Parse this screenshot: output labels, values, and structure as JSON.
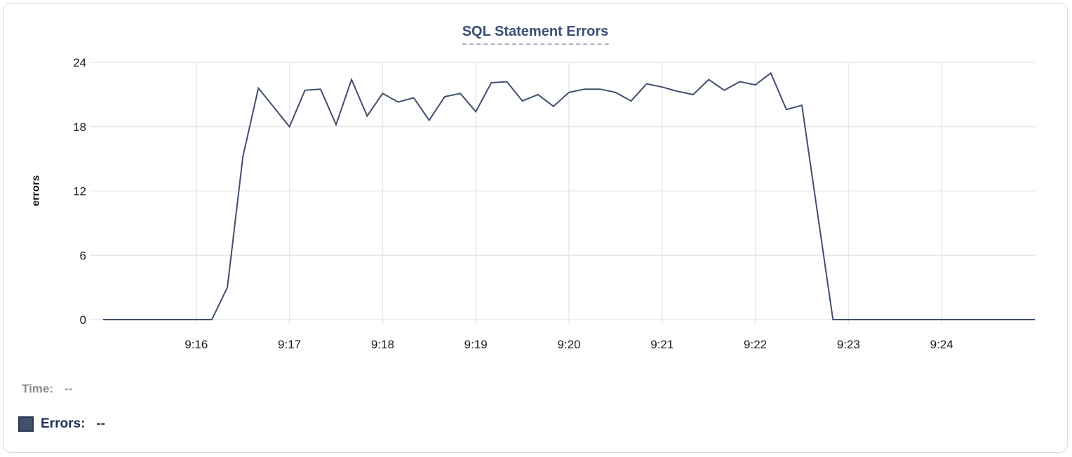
{
  "header": {
    "title": "SQL Statement Errors"
  },
  "colors": {
    "line": "#404f6e",
    "grid": "#e8e8e8",
    "card_border": "#d9d9de",
    "title_text": "#3c4e74",
    "title_underline": "#a8b1c4",
    "tick_text": "#1b1b1f",
    "time_text_gray": "#8b8b90",
    "errors_text_navy": "#1e2d55",
    "swatch_fill": "#41506b"
  },
  "footer": {
    "time_label": "Time:",
    "time_value": "--",
    "errors_label": "Errors:",
    "errors_value": "--"
  },
  "chart_data": {
    "type": "line",
    "title": "SQL Statement Errors",
    "xlabel": "",
    "ylabel": "errors",
    "ylim": [
      0,
      24
    ],
    "x_range": [
      "9:15:00",
      "9:25:00"
    ],
    "y_ticks": [
      24,
      18,
      12,
      6,
      0
    ],
    "x_ticks": [
      "9:16",
      "9:17",
      "9:18",
      "9:19",
      "9:20",
      "9:21",
      "9:22",
      "9:23",
      "9:24"
    ],
    "grid": true,
    "legend_position": "bottom-left",
    "series": [
      {
        "name": "Errors",
        "color": "#404f6e",
        "points": [
          [
            "9:15:00",
            0
          ],
          [
            "9:15:10",
            0
          ],
          [
            "9:15:20",
            0
          ],
          [
            "9:15:30",
            0
          ],
          [
            "9:15:40",
            0
          ],
          [
            "9:15:50",
            0
          ],
          [
            "9:16:00",
            0
          ],
          [
            "9:16:10",
            0
          ],
          [
            "9:16:20",
            3
          ],
          [
            "9:16:30",
            15.2
          ],
          [
            "9:16:40",
            21.6
          ],
          [
            "9:16:50",
            19.8
          ],
          [
            "9:17:00",
            18
          ],
          [
            "9:17:10",
            21.4
          ],
          [
            "9:17:20",
            21.5
          ],
          [
            "9:17:30",
            18.2
          ],
          [
            "9:17:40",
            22.4
          ],
          [
            "9:17:50",
            19
          ],
          [
            "9:18:00",
            21.1
          ],
          [
            "9:18:10",
            20.3
          ],
          [
            "9:18:20",
            20.7
          ],
          [
            "9:18:30",
            18.6
          ],
          [
            "9:18:40",
            20.8
          ],
          [
            "9:18:50",
            21.1
          ],
          [
            "9:19:00",
            19.4
          ],
          [
            "9:19:10",
            22.1
          ],
          [
            "9:19:20",
            22.2
          ],
          [
            "9:19:30",
            20.4
          ],
          [
            "9:19:40",
            21
          ],
          [
            "9:19:50",
            19.9
          ],
          [
            "9:20:00",
            21.2
          ],
          [
            "9:20:10",
            21.5
          ],
          [
            "9:20:20",
            21.5
          ],
          [
            "9:20:30",
            21.2
          ],
          [
            "9:20:40",
            20.4
          ],
          [
            "9:20:50",
            22
          ],
          [
            "9:21:00",
            21.7
          ],
          [
            "9:21:10",
            21.3
          ],
          [
            "9:21:20",
            21
          ],
          [
            "9:21:30",
            22.4
          ],
          [
            "9:21:40",
            21.4
          ],
          [
            "9:21:50",
            22.2
          ],
          [
            "9:22:00",
            21.9
          ],
          [
            "9:22:10",
            23
          ],
          [
            "9:22:20",
            19.6
          ],
          [
            "9:22:30",
            20
          ],
          [
            "9:22:40",
            10
          ],
          [
            "9:22:50",
            0
          ],
          [
            "9:23:00",
            0
          ],
          [
            "9:23:10",
            0
          ],
          [
            "9:23:20",
            0
          ],
          [
            "9:23:30",
            0
          ],
          [
            "9:23:40",
            0
          ],
          [
            "9:23:50",
            0
          ],
          [
            "9:24:00",
            0
          ],
          [
            "9:24:10",
            0
          ],
          [
            "9:24:20",
            0
          ],
          [
            "9:24:30",
            0
          ],
          [
            "9:24:40",
            0
          ],
          [
            "9:24:50",
            0
          ],
          [
            "9:25:00",
            0
          ]
        ]
      }
    ]
  }
}
